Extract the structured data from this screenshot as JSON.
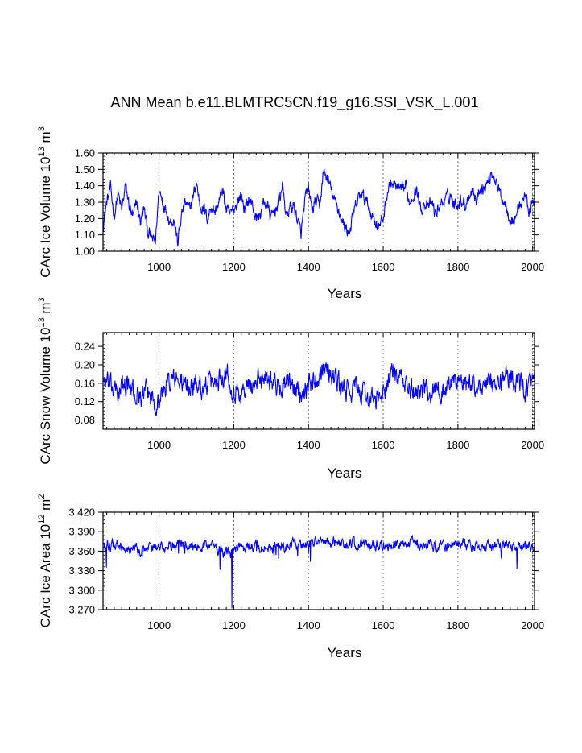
{
  "title": "ANN Mean b.e11.BLMTRC5CN.f19_g16.SSI_VSK_L.001",
  "chart_data": [
    {
      "type": "line",
      "ylabel_prefix": "CArc Ice Volume 10",
      "ylabel_exponent": "13",
      "ylabel_unit": "m",
      "ylabel_unit_exponent": "3",
      "xlabel": "Years",
      "xlim": [
        850,
        2005
      ],
      "ylim": [
        1.0,
        1.6
      ],
      "yticks": [
        "1.00",
        "1.10",
        "1.20",
        "1.30",
        "1.40",
        "1.50",
        "1.60"
      ],
      "xticks": [
        "1000",
        "1200",
        "1400",
        "1600",
        "1800",
        "2000"
      ],
      "series_color": "#0000ff",
      "y_keypoints": [
        [
          850,
          1.16
        ],
        [
          860,
          1.3
        ],
        [
          870,
          1.38
        ],
        [
          880,
          1.22
        ],
        [
          890,
          1.35
        ],
        [
          900,
          1.25
        ],
        [
          910,
          1.4
        ],
        [
          920,
          1.28
        ],
        [
          930,
          1.2
        ],
        [
          940,
          1.3
        ],
        [
          950,
          1.18
        ],
        [
          960,
          1.26
        ],
        [
          970,
          1.12
        ],
        [
          980,
          1.08
        ],
        [
          990,
          1.05
        ],
        [
          1000,
          1.38
        ],
        [
          1010,
          1.3
        ],
        [
          1020,
          1.25
        ],
        [
          1030,
          1.18
        ],
        [
          1040,
          1.2
        ],
        [
          1050,
          1.05
        ],
        [
          1060,
          1.22
        ],
        [
          1070,
          1.3
        ],
        [
          1080,
          1.25
        ],
        [
          1090,
          1.32
        ],
        [
          1100,
          1.42
        ],
        [
          1110,
          1.28
        ],
        [
          1120,
          1.26
        ],
        [
          1130,
          1.2
        ],
        [
          1140,
          1.28
        ],
        [
          1150,
          1.24
        ],
        [
          1160,
          1.3
        ],
        [
          1170,
          1.38
        ],
        [
          1180,
          1.25
        ],
        [
          1190,
          1.22
        ],
        [
          1200,
          1.26
        ],
        [
          1210,
          1.3
        ],
        [
          1220,
          1.35
        ],
        [
          1230,
          1.25
        ],
        [
          1240,
          1.32
        ],
        [
          1250,
          1.28
        ],
        [
          1260,
          1.2
        ],
        [
          1270,
          1.22
        ],
        [
          1280,
          1.3
        ],
        [
          1290,
          1.28
        ],
        [
          1300,
          1.2
        ],
        [
          1310,
          1.25
        ],
        [
          1320,
          1.3
        ],
        [
          1330,
          1.4
        ],
        [
          1340,
          1.22
        ],
        [
          1350,
          1.26
        ],
        [
          1360,
          1.28
        ],
        [
          1370,
          1.2
        ],
        [
          1380,
          1.1
        ],
        [
          1390,
          1.3
        ],
        [
          1400,
          1.38
        ],
        [
          1410,
          1.25
        ],
        [
          1420,
          1.3
        ],
        [
          1430,
          1.28
        ],
        [
          1440,
          1.48
        ],
        [
          1450,
          1.45
        ],
        [
          1460,
          1.38
        ],
        [
          1470,
          1.3
        ],
        [
          1480,
          1.26
        ],
        [
          1490,
          1.18
        ],
        [
          1500,
          1.14
        ],
        [
          1510,
          1.12
        ],
        [
          1520,
          1.22
        ],
        [
          1530,
          1.3
        ],
        [
          1540,
          1.35
        ],
        [
          1550,
          1.32
        ],
        [
          1560,
          1.28
        ],
        [
          1570,
          1.22
        ],
        [
          1580,
          1.18
        ],
        [
          1590,
          1.15
        ],
        [
          1600,
          1.2
        ],
        [
          1610,
          1.35
        ],
        [
          1620,
          1.42
        ],
        [
          1630,
          1.4
        ],
        [
          1640,
          1.38
        ],
        [
          1650,
          1.36
        ],
        [
          1660,
          1.4
        ],
        [
          1670,
          1.3
        ],
        [
          1680,
          1.35
        ],
        [
          1690,
          1.38
        ],
        [
          1700,
          1.25
        ],
        [
          1710,
          1.3
        ],
        [
          1720,
          1.26
        ],
        [
          1730,
          1.3
        ],
        [
          1740,
          1.22
        ],
        [
          1750,
          1.28
        ],
        [
          1760,
          1.3
        ],
        [
          1770,
          1.32
        ],
        [
          1780,
          1.35
        ],
        [
          1790,
          1.28
        ],
        [
          1800,
          1.3
        ],
        [
          1810,
          1.32
        ],
        [
          1820,
          1.28
        ],
        [
          1830,
          1.35
        ],
        [
          1840,
          1.38
        ],
        [
          1850,
          1.3
        ],
        [
          1860,
          1.4
        ],
        [
          1870,
          1.38
        ],
        [
          1880,
          1.42
        ],
        [
          1890,
          1.48
        ],
        [
          1900,
          1.45
        ],
        [
          1910,
          1.36
        ],
        [
          1920,
          1.32
        ],
        [
          1930,
          1.28
        ],
        [
          1940,
          1.2
        ],
        [
          1950,
          1.18
        ],
        [
          1960,
          1.26
        ],
        [
          1970,
          1.3
        ],
        [
          1980,
          1.35
        ],
        [
          1990,
          1.25
        ],
        [
          2000,
          1.28
        ],
        [
          2005,
          1.3
        ]
      ],
      "y_mean": 1.28,
      "noise_amp": 0.055
    },
    {
      "type": "line",
      "ylabel_prefix": "CArc Snow Volume 10",
      "ylabel_exponent": "13",
      "ylabel_unit": "m",
      "ylabel_unit_exponent": "3",
      "xlabel": "Years",
      "xlim": [
        850,
        2005
      ],
      "ylim": [
        0.06,
        0.27
      ],
      "yticks": [
        "0.08",
        "0.12",
        "0.16",
        "0.20",
        "0.24"
      ],
      "xticks": [
        "1000",
        "1200",
        "1400",
        "1600",
        "1800",
        "2000"
      ],
      "series_color": "#0000ff",
      "y_keypoints": [
        [
          850,
          0.17
        ],
        [
          870,
          0.15
        ],
        [
          890,
          0.14
        ],
        [
          910,
          0.16
        ],
        [
          930,
          0.14
        ],
        [
          950,
          0.13
        ],
        [
          970,
          0.14
        ],
        [
          990,
          0.12
        ],
        [
          1000,
          0.12
        ],
        [
          1020,
          0.16
        ],
        [
          1040,
          0.17
        ],
        [
          1060,
          0.16
        ],
        [
          1080,
          0.15
        ],
        [
          1100,
          0.16
        ],
        [
          1120,
          0.15
        ],
        [
          1140,
          0.16
        ],
        [
          1160,
          0.17
        ],
        [
          1180,
          0.19
        ],
        [
          1200,
          0.14
        ],
        [
          1220,
          0.14
        ],
        [
          1240,
          0.15
        ],
        [
          1260,
          0.16
        ],
        [
          1280,
          0.18
        ],
        [
          1300,
          0.17
        ],
        [
          1320,
          0.15
        ],
        [
          1340,
          0.16
        ],
        [
          1360,
          0.15
        ],
        [
          1380,
          0.14
        ],
        [
          1400,
          0.16
        ],
        [
          1420,
          0.17
        ],
        [
          1440,
          0.2
        ],
        [
          1460,
          0.18
        ],
        [
          1480,
          0.16
        ],
        [
          1500,
          0.14
        ],
        [
          1520,
          0.15
        ],
        [
          1540,
          0.14
        ],
        [
          1560,
          0.13
        ],
        [
          1580,
          0.12
        ],
        [
          1600,
          0.14
        ],
        [
          1620,
          0.18
        ],
        [
          1640,
          0.17
        ],
        [
          1660,
          0.16
        ],
        [
          1680,
          0.14
        ],
        [
          1700,
          0.15
        ],
        [
          1720,
          0.14
        ],
        [
          1740,
          0.15
        ],
        [
          1760,
          0.14
        ],
        [
          1780,
          0.16
        ],
        [
          1800,
          0.17
        ],
        [
          1820,
          0.15
        ],
        [
          1840,
          0.16
        ],
        [
          1860,
          0.15
        ],
        [
          1880,
          0.16
        ],
        [
          1900,
          0.15
        ],
        [
          1920,
          0.17
        ],
        [
          1940,
          0.18
        ],
        [
          1960,
          0.16
        ],
        [
          1980,
          0.15
        ],
        [
          2005,
          0.16
        ]
      ],
      "y_mean": 0.155,
      "noise_amp": 0.032
    },
    {
      "type": "line",
      "ylabel_prefix": "CArc Ice Area 10",
      "ylabel_exponent": "12",
      "ylabel_unit": "m",
      "ylabel_unit_exponent": "2",
      "xlabel": "Years",
      "xlim": [
        850,
        2005
      ],
      "ylim": [
        3.27,
        3.42
      ],
      "yticks": [
        "3.420",
        "3.390",
        "3.360",
        "3.330",
        "3.300",
        "3.270"
      ],
      "xticks": [
        "1000",
        "1200",
        "1400",
        "1600",
        "1800",
        "2000"
      ],
      "series_color": "#0000ff",
      "y_keypoints": [
        [
          850,
          3.37
        ],
        [
          900,
          3.368
        ],
        [
          950,
          3.362
        ],
        [
          1000,
          3.366
        ],
        [
          1050,
          3.37
        ],
        [
          1100,
          3.368
        ],
        [
          1150,
          3.366
        ],
        [
          1190,
          3.355
        ],
        [
          1200,
          3.362
        ],
        [
          1250,
          3.368
        ],
        [
          1300,
          3.362
        ],
        [
          1350,
          3.37
        ],
        [
          1400,
          3.372
        ],
        [
          1450,
          3.376
        ],
        [
          1500,
          3.372
        ],
        [
          1550,
          3.37
        ],
        [
          1600,
          3.366
        ],
        [
          1650,
          3.374
        ],
        [
          1700,
          3.372
        ],
        [
          1750,
          3.368
        ],
        [
          1800,
          3.37
        ],
        [
          1850,
          3.368
        ],
        [
          1900,
          3.37
        ],
        [
          1950,
          3.368
        ],
        [
          2005,
          3.366
        ]
      ],
      "y_mean": 3.368,
      "noise_amp": 0.011
    }
  ]
}
